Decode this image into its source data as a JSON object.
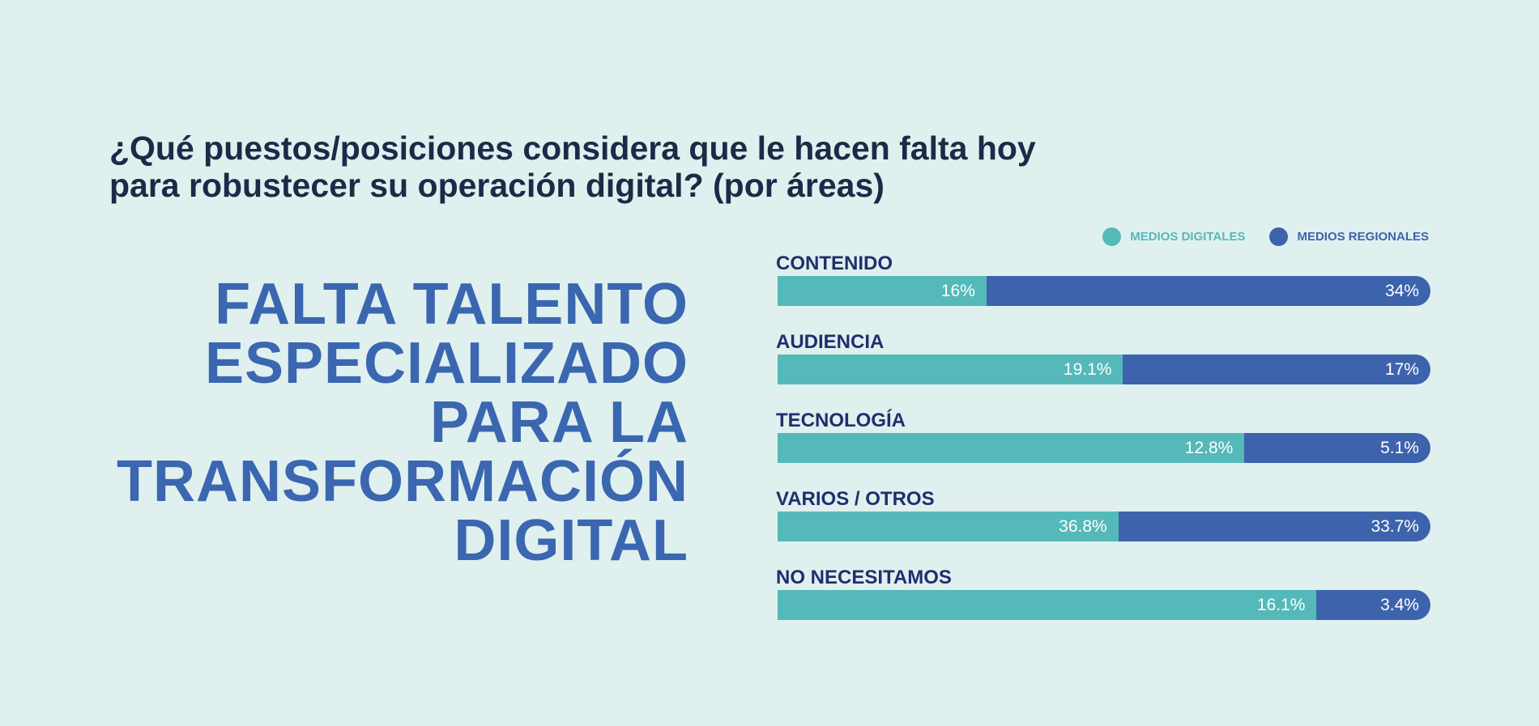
{
  "question": {
    "line1": "¿Qué puestos/posiciones considera que le hacen falta hoy",
    "line2": "para robustecer su operación digital? (por áreas)"
  },
  "headline": {
    "lines": [
      "FALTA TALENTO",
      "ESPECIALIZADO",
      "PARA LA",
      "TRANSFORMACIÓN",
      "DIGITAL"
    ]
  },
  "colors": {
    "background": "#dff0ef",
    "digitales": "#55b9b9",
    "regionales": "#3e63ad",
    "headline": "#3b66b0",
    "question": "#1d2a47",
    "category_label": "#1f2f6d"
  },
  "chart_data": {
    "type": "bar",
    "orientation": "horizontal",
    "stacked": true,
    "categories": [
      "CONTENIDO",
      "AUDIENCIA",
      "TECNOLOGÍA",
      "VARIOS / OTROS",
      "NO NECESITAMOS"
    ],
    "series": [
      {
        "name": "MEDIOS DIGITALES",
        "values": [
          16,
          19.1,
          12.8,
          36.8,
          16.1
        ],
        "labels": [
          "16%",
          "19.1%",
          "12.8%",
          "36.8%",
          "16.1%"
        ]
      },
      {
        "name": "MEDIOS REGIONALES",
        "values": [
          34,
          17,
          5.1,
          33.7,
          3.4
        ],
        "labels": [
          "34%",
          "17%",
          "5.1%",
          "33.7%",
          "3.4%"
        ]
      }
    ],
    "legend": "top-right",
    "grid": false
  }
}
